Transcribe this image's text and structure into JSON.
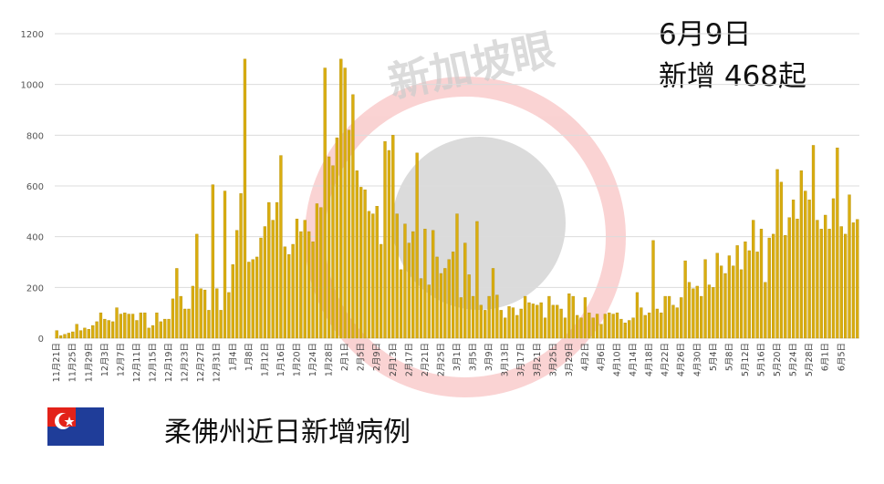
{
  "chart_data": {
    "type": "bar",
    "title": "6月9日",
    "subtitle": "新增 468起",
    "caption": "柔佛州近日新增病例",
    "watermark": "新加坡眼",
    "color": "#d9ad0f",
    "grid": true,
    "ylim": [
      0,
      1200
    ],
    "yticks": [
      0,
      200,
      400,
      600,
      800,
      1000,
      1200
    ],
    "categories": [
      "11月21日",
      null,
      null,
      null,
      "11月25日",
      null,
      null,
      null,
      "11月29日",
      null,
      null,
      null,
      "12月3日",
      null,
      null,
      null,
      "12月7日",
      null,
      null,
      null,
      "12月11日",
      null,
      null,
      null,
      "12月15日",
      null,
      null,
      null,
      "12月19日",
      null,
      null,
      null,
      "12月23日",
      null,
      null,
      null,
      "12月27日",
      null,
      null,
      null,
      "12月31日",
      null,
      null,
      null,
      "1月4日",
      null,
      null,
      null,
      "1月8日",
      null,
      null,
      null,
      "1月12日",
      null,
      null,
      null,
      "1月16日",
      null,
      null,
      null,
      "1月20日",
      null,
      null,
      null,
      "1月24日",
      null,
      null,
      null,
      "1月28日",
      null,
      null,
      null,
      "2月1日",
      null,
      null,
      null,
      "2月5日",
      null,
      null,
      null,
      "2月9日",
      null,
      null,
      null,
      "2月13日",
      null,
      null,
      null,
      "2月17日",
      null,
      null,
      null,
      "2月21日",
      null,
      null,
      null,
      "2月25日",
      null,
      null,
      null,
      "3月1日",
      null,
      null,
      null,
      "3月5日",
      null,
      null,
      null,
      "3月9日",
      null,
      null,
      null,
      "3月13日",
      null,
      null,
      null,
      "3月17日",
      null,
      null,
      null,
      "3月21日",
      null,
      null,
      null,
      "3月25日",
      null,
      null,
      null,
      "3月29日",
      null,
      null,
      null,
      "4月2日",
      null,
      null,
      null,
      "4月6日",
      null,
      null,
      null,
      "4月10日",
      null,
      null,
      null,
      "4月14日",
      null,
      null,
      null,
      "4月18日",
      null,
      null,
      null,
      "4月22日",
      null,
      null,
      null,
      "4月26日",
      null,
      null,
      null,
      "4月30日",
      null,
      null,
      null,
      "5月4日",
      null,
      null,
      null,
      "5月8日",
      null,
      null,
      null,
      "5月12日",
      null,
      null,
      null,
      "5月16日",
      null,
      null,
      null,
      "5月20日",
      null,
      null,
      null,
      "5月24日",
      null,
      null,
      null,
      "5月28日",
      null,
      null,
      null,
      "6月1日",
      null,
      null,
      null,
      "6月5日",
      null,
      null,
      null,
      null
    ],
    "values": [
      30,
      10,
      15,
      20,
      25,
      55,
      30,
      40,
      35,
      50,
      65,
      100,
      75,
      70,
      65,
      120,
      95,
      100,
      95,
      95,
      70,
      100,
      100,
      40,
      50,
      100,
      65,
      75,
      75,
      155,
      275,
      165,
      115,
      115,
      205,
      410,
      195,
      190,
      110,
      605,
      195,
      110,
      580,
      180,
      290,
      425,
      570,
      1100,
      300,
      310,
      320,
      395,
      440,
      535,
      465,
      535,
      720,
      360,
      330,
      370,
      470,
      420,
      465,
      420,
      380,
      530,
      515,
      1065,
      715,
      680,
      790,
      1100,
      1065,
      820,
      960,
      660,
      595,
      585,
      500,
      490,
      520,
      370,
      775,
      740,
      800,
      490,
      270,
      450,
      375,
      420,
      730,
      235,
      430,
      210,
      425,
      320,
      255,
      275,
      310,
      340,
      490,
      160,
      375,
      250,
      165,
      460,
      130,
      110,
      165,
      275,
      170,
      110,
      80,
      125,
      120,
      90,
      115,
      165,
      140,
      135,
      130,
      140,
      80,
      165,
      130,
      130,
      115,
      80,
      175,
      165,
      90,
      80,
      160,
      100,
      80,
      95,
      55,
      95,
      100,
      95,
      100,
      75,
      60,
      70,
      80,
      180,
      120,
      90,
      100,
      385,
      115,
      100,
      165,
      165,
      130,
      120,
      160,
      305,
      220,
      195,
      205,
      165,
      310,
      210,
      200,
      335,
      285,
      255,
      325,
      285,
      365,
      270,
      380,
      345,
      465,
      340,
      430,
      220,
      395,
      410,
      665,
      615,
      405,
      475,
      545,
      470,
      660,
      580,
      545,
      760,
      465,
      430,
      485,
      430,
      550,
      750,
      440,
      410,
      565,
      455,
      468
    ]
  }
}
